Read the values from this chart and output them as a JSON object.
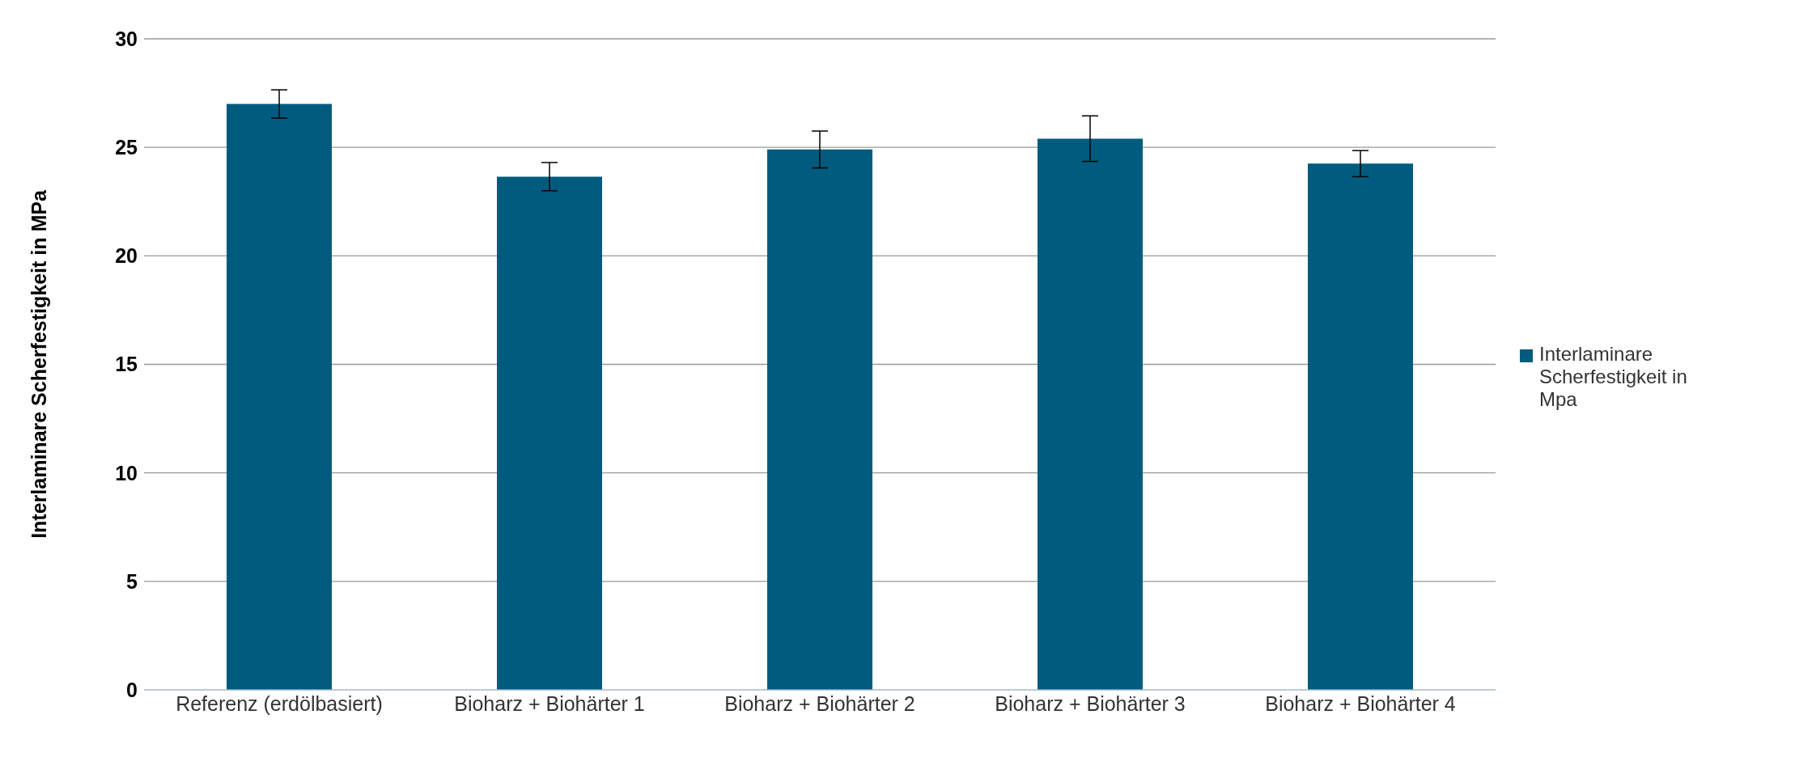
{
  "chart_data": {
    "type": "bar",
    "ylabel": "Interlaminare Scherfestigkeit in MPa",
    "categories": [
      "Referenz (erdölbasiert)",
      "Bioharz + Biohärter 1",
      "Bioharz + Biohärter 2",
      "Bioharz + Biohärter 3",
      "Bioharz + Biohärter 4"
    ],
    "series": [
      {
        "name": "Interlaminare Scherfestigkeit in Mpa",
        "color": "#005b7f",
        "values": [
          27.0,
          23.65,
          24.9,
          25.4,
          24.25
        ],
        "errors": [
          0.65,
          0.65,
          0.85,
          1.05,
          0.6
        ]
      }
    ],
    "ylim": [
      0,
      30
    ],
    "yticks": [
      0,
      5,
      10,
      15,
      20,
      25,
      30
    ],
    "grid": "y",
    "legend": "right"
  }
}
